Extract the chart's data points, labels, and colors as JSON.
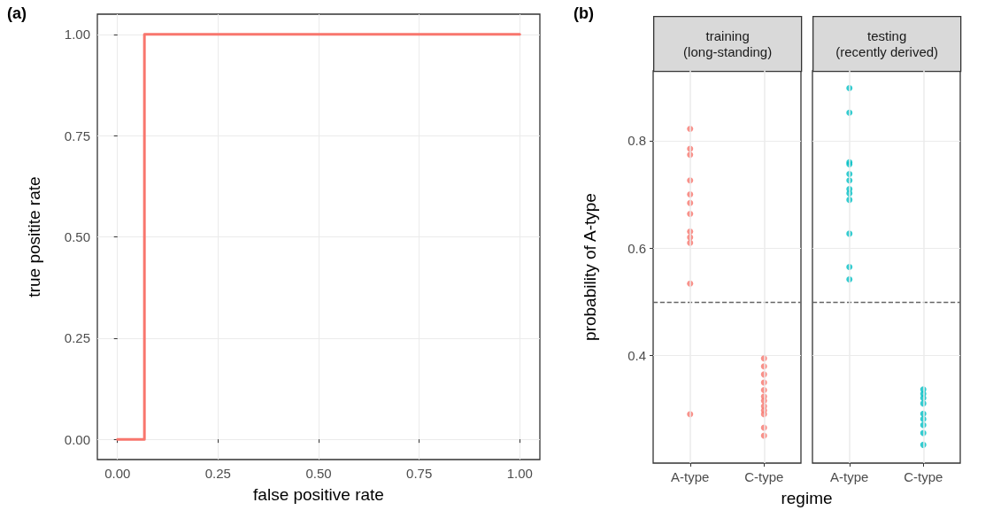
{
  "chart_data": [
    {
      "type": "line",
      "xlabel": "false positive rate",
      "ylabel": "true positite rate",
      "annotations": [
        "(a)"
      ],
      "grid": true,
      "marker": "none",
      "line_style": "solid",
      "xlim": [
        -0.05,
        1.05
      ],
      "ylim": [
        -0.05,
        1.05
      ],
      "xticks": [
        {
          "value": 0,
          "label": "0.00"
        },
        {
          "value": 0.25,
          "label": "0.25"
        },
        {
          "value": 0.5,
          "label": "0.50"
        },
        {
          "value": 0.75,
          "label": "0.75"
        },
        {
          "value": 1,
          "label": "1.00"
        }
      ],
      "yticks": [
        {
          "value": 0,
          "label": "0.00"
        },
        {
          "value": 0.25,
          "label": "0.25"
        },
        {
          "value": 0.5,
          "label": "0.50"
        },
        {
          "value": 0.75,
          "label": "0.75"
        },
        {
          "value": 1,
          "label": "1.00"
        }
      ],
      "series": [
        {
          "color": "#f8766d",
          "x": [
            0,
            0.067,
            0.067,
            1
          ],
          "values": [
            0,
            0,
            1,
            1
          ]
        }
      ]
    },
    {
      "type": "scatter",
      "title": "training\n(long-standing)",
      "ylabel": "probability of A-type",
      "xlabel": "regime",
      "annotations": [
        "(b)"
      ],
      "grid": true,
      "marker": "circle",
      "categories": [
        "A-type",
        "C-type"
      ],
      "ylim": [
        0.2,
        0.93
      ],
      "yticks": [
        0.4,
        0.6,
        0.8
      ],
      "ref_lines": [
        {
          "axis": "y",
          "value": 0.5,
          "color": "#666666",
          "line_style": "dashed"
        }
      ],
      "series": [
        {
          "color": "#f8766d",
          "x": [
            "A-type",
            "A-type",
            "A-type",
            "A-type",
            "A-type",
            "A-type",
            "A-type",
            "A-type",
            "A-type",
            "A-type",
            "A-type",
            "A-type",
            "C-type",
            "C-type",
            "C-type",
            "C-type",
            "C-type",
            "C-type",
            "C-type",
            "C-type",
            "C-type",
            "C-type",
            "C-type",
            "C-type"
          ],
          "values": [
            0.822,
            0.785,
            0.774,
            0.726,
            0.7,
            0.684,
            0.664,
            0.631,
            0.62,
            0.61,
            0.534,
            0.291,
            0.395,
            0.38,
            0.365,
            0.35,
            0.336,
            0.324,
            0.316,
            0.306,
            0.298,
            0.291,
            0.266,
            0.251
          ]
        }
      ]
    },
    {
      "type": "scatter",
      "title": "testing\n(recently derived)",
      "tick_labels": "x",
      "grid": true,
      "marker": "circle",
      "categories": [
        "A-type",
        "C-type"
      ],
      "ylim": [
        0.2,
        0.93
      ],
      "yticks": [
        0.4,
        0.6,
        0.8
      ],
      "ref_lines": [
        {
          "axis": "y",
          "value": 0.5,
          "color": "#666666",
          "line_style": "dashed"
        }
      ],
      "series": [
        {
          "color": "#00bfc4",
          "x": [
            "A-type",
            "A-type",
            "A-type",
            "A-type",
            "A-type",
            "A-type",
            "A-type",
            "A-type",
            "A-type",
            "A-type",
            "A-type",
            "A-type",
            "C-type",
            "C-type",
            "C-type",
            "C-type",
            "C-type",
            "C-type",
            "C-type",
            "C-type",
            "C-type"
          ],
          "values": [
            0.898,
            0.852,
            0.76,
            0.756,
            0.738,
            0.726,
            0.71,
            0.702,
            0.69,
            0.627,
            0.565,
            0.542,
            0.337,
            0.329,
            0.321,
            0.311,
            0.292,
            0.282,
            0.271,
            0.256,
            0.234
          ]
        }
      ]
    }
  ]
}
